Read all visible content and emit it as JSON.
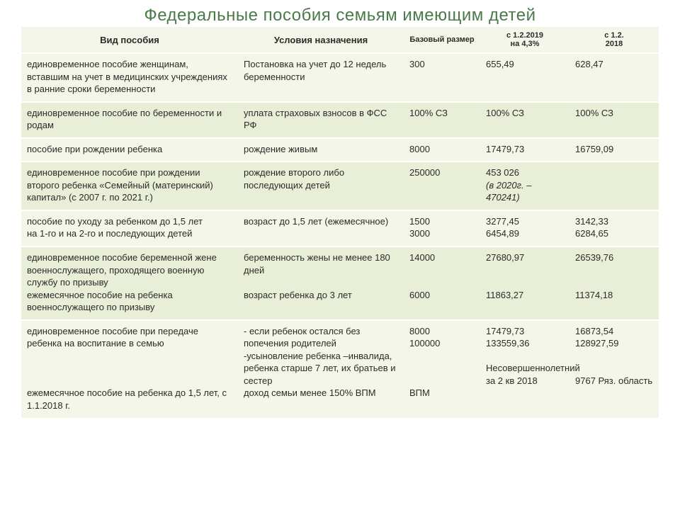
{
  "title": "Федеральные пособия семьям имеющим детей",
  "columns": {
    "c0": "Вид пособия",
    "c1": "Условия назначения",
    "c2": "Базовый размер",
    "c3": "с 1.2.2019\nна 4,3%",
    "c4": "с 1.2.\n2018"
  },
  "rows": {
    "r0": {
      "type": "единовременное пособие женщинам, вставшим на учет в медицинских учреждениях в ранние сроки беременности",
      "cond": "Постановка на учет до 12 недель беременности",
      "base": "300",
      "v2019": "655,49",
      "v2018": "628,47"
    },
    "r1": {
      "type": "единовременное пособие по беременности и родам",
      "cond": "уплата страховых взносов  в ФСС РФ",
      "base": "100% СЗ",
      "v2019": "100% СЗ",
      "v2018": "100% СЗ"
    },
    "r2": {
      "type": "пособие при рождении  ребенка",
      "cond": "рождение живым",
      "base": "8000",
      "v2019": "17479,73",
      "v2018": "16759,09"
    },
    "r3": {
      "type": "единовременное пособие при рождении второго ребенка «Семейный (материнский) капитал»  (с 2007 г. по 2021 г.)",
      "cond": "рождение второго  либо последующих детей",
      "base": "250000",
      "v2019_main": "453 026",
      "v2019_note": " (в 2020г. – 470241)",
      "v2018": ""
    },
    "r4": {
      "type": "пособие по уходу за ребенком до 1,5 лет\nна 1-го и на 2-го и последующих детей",
      "cond": "возраст до 1,5 лет  (ежемесячное)",
      "base": "1500\n3000",
      "v2019": "3277,45\n6454,89",
      "v2018": "3142,33\n6284,65"
    },
    "r5": {
      "type": "единовременное пособие беременной жене военнослужащего, проходящего военную службу по призыву\nежемесячное пособие на ребенка военнослужащего по призыву",
      "cond": "беременность жены не менее 180 дней\n\nвозраст ребенка до 3 лет",
      "base": "14000\n\n\n6000",
      "v2019": "27680,97\n\n\n11863,27",
      "v2018": "26539,76\n\n\n11374,18"
    },
    "r6": {
      "type": "единовременное пособие при передаче ребенка на воспитание в семью\n\n\n\nежемесячное пособие на ребенка до 1,5 лет, с 1.1.2018 г.",
      "cond": "- если ребенок остался без попечения родителей\n-усыновление ребенка –инвалида, ребенка старше 7 лет, их братьев и сестер\nдоход семьи менее 150% ВПМ",
      "base": "8000\n100000\n\n\n\n       ВПМ",
      "v2019": "17479,73\n133559,36\n\nНесовершеннолетний за 2 кв 2018",
      "v2018": "16873,54\n128927,59\n\n\n9767 Ряз. область"
    }
  }
}
